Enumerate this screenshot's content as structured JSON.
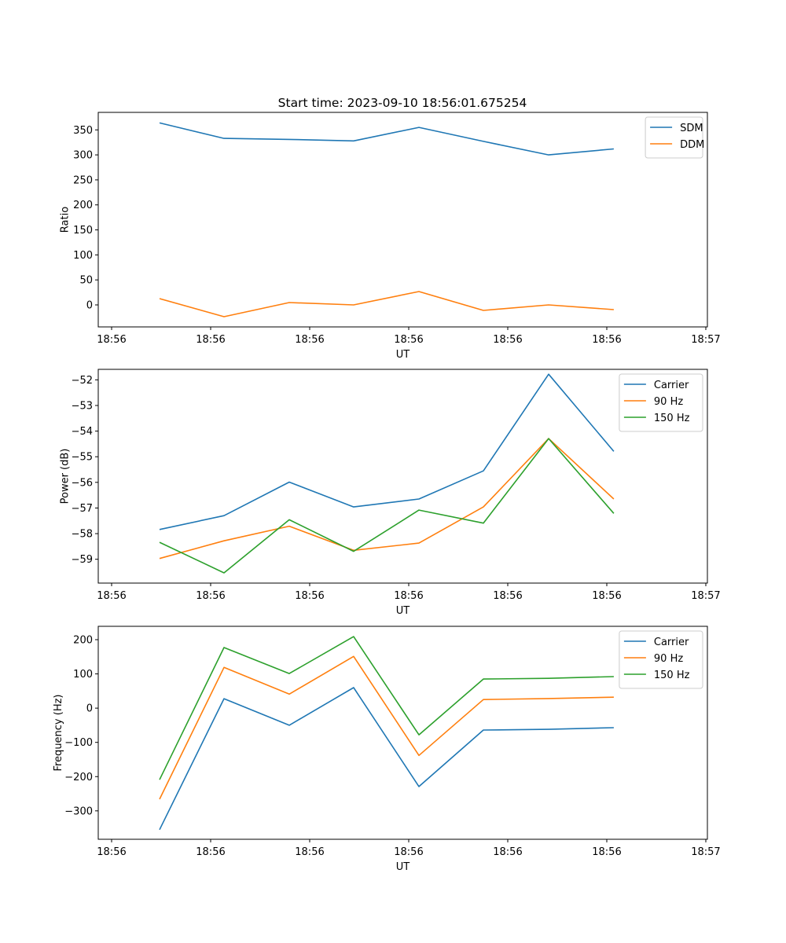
{
  "figure_title": "Start time: 2023-09-10 18:56:01.675254",
  "chart_data": [
    {
      "type": "line",
      "title": "Start time: 2023-09-10 18:56:01.675254",
      "xlabel": "UT",
      "ylabel": "Ratio",
      "x_tick_labels": [
        "18:56",
        "18:56",
        "18:56",
        "18:56",
        "18:56",
        "18:56",
        "18:57"
      ],
      "x_tick_positions": [
        0,
        1,
        2,
        3,
        4,
        5,
        6
      ],
      "xlim": [
        -0.135,
        6.016
      ],
      "x": [
        0.484,
        1.135,
        1.794,
        2.444,
        3.103,
        3.754,
        4.413,
        5.071
      ],
      "y_ticks": [
        0,
        50,
        100,
        150,
        200,
        250,
        300,
        350
      ],
      "y_tick_labels": [
        "0",
        "50",
        "100",
        "150",
        "200",
        "250",
        "300",
        "350"
      ],
      "ylim": [
        -44,
        385
      ],
      "grid": false,
      "legend_position": "top-right",
      "series": [
        {
          "name": "SDM",
          "color": "#1f77b4",
          "values": [
            364,
            333,
            331,
            328,
            355,
            327,
            300,
            312
          ]
        },
        {
          "name": "DDM",
          "color": "#ff7f0e",
          "values": [
            12.5,
            -23.5,
            4.7,
            0,
            26.7,
            -11,
            0,
            -9.4
          ]
        }
      ]
    },
    {
      "type": "line",
      "title": "",
      "xlabel": "UT",
      "ylabel": "Power (dB)",
      "x_tick_labels": [
        "18:56",
        "18:56",
        "18:56",
        "18:56",
        "18:56",
        "18:56",
        "18:57"
      ],
      "x_tick_positions": [
        0,
        1,
        2,
        3,
        4,
        5,
        6
      ],
      "xlim": [
        -0.135,
        6.016
      ],
      "x": [
        0.484,
        1.135,
        1.794,
        2.444,
        3.103,
        3.754,
        4.413,
        5.071
      ],
      "y_ticks": [
        -59,
        -58,
        -57,
        -56,
        -55,
        -54,
        -53,
        -52
      ],
      "y_tick_labels": [
        "−59",
        "−58",
        "−57",
        "−56",
        "−55",
        "−54",
        "−53",
        "−52"
      ],
      "ylim": [
        -59.93,
        -51.59
      ],
      "grid": false,
      "legend_position": "top-right",
      "series": [
        {
          "name": "Carrier",
          "color": "#1f77b4",
          "values": [
            -57.84,
            -57.3,
            -55.99,
            -56.96,
            -56.65,
            -55.55,
            -51.78,
            -54.79
          ]
        },
        {
          "name": "90 Hz",
          "color": "#ff7f0e",
          "values": [
            -58.97,
            -58.28,
            -57.71,
            -58.65,
            -58.37,
            -56.96,
            -54.29,
            -56.65
          ]
        },
        {
          "name": "150 Hz",
          "color": "#2ca02c",
          "values": [
            -58.34,
            -59.53,
            -57.46,
            -58.69,
            -57.08,
            -57.59,
            -54.29,
            -57.21
          ]
        }
      ]
    },
    {
      "type": "line",
      "title": "",
      "xlabel": "UT",
      "ylabel": "Frequency (Hz)",
      "x_tick_labels": [
        "18:56",
        "18:56",
        "18:56",
        "18:56",
        "18:56",
        "18:56",
        "18:57"
      ],
      "x_tick_positions": [
        0,
        1,
        2,
        3,
        4,
        5,
        6
      ],
      "xlim": [
        -0.135,
        6.016
      ],
      "x": [
        0.484,
        1.135,
        1.794,
        2.444,
        3.103,
        3.754,
        4.413,
        5.071
      ],
      "y_ticks": [
        -300,
        -200,
        -100,
        0,
        100,
        200
      ],
      "y_tick_labels": [
        "−300",
        "−200",
        "−100",
        "0",
        "100",
        "200"
      ],
      "ylim": [
        -383,
        239
      ],
      "grid": false,
      "legend_position": "top-right",
      "series": [
        {
          "name": "Carrier",
          "color": "#1f77b4",
          "values": [
            -355,
            27.5,
            -50,
            60,
            -229,
            -64,
            -62,
            -57
          ]
        },
        {
          "name": "90 Hz",
          "color": "#ff7f0e",
          "values": [
            -266,
            119,
            41,
            151,
            -138,
            25,
            28,
            32
          ]
        },
        {
          "name": "150 Hz",
          "color": "#2ca02c",
          "values": [
            -209,
            177,
            101,
            209,
            -78,
            85,
            87,
            92
          ]
        }
      ]
    }
  ]
}
